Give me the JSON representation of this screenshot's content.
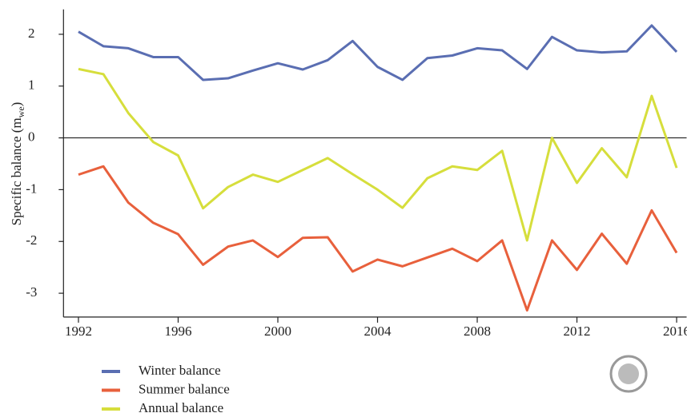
{
  "chart_data": {
    "type": "line",
    "ylabel": {
      "text": "Specific balance (m",
      "subscript": "we",
      "suffix": ")"
    },
    "x": [
      1992,
      1993,
      1994,
      1995,
      1996,
      1997,
      1998,
      1999,
      2000,
      2001,
      2002,
      2003,
      2004,
      2005,
      2006,
      2007,
      2008,
      2009,
      2010,
      2011,
      2012,
      2013,
      2014,
      2015,
      2016
    ],
    "series": [
      {
        "name": "Winter balance",
        "color": "#5a6eb2",
        "values": [
          2.05,
          1.77,
          1.73,
          1.56,
          1.56,
          1.12,
          1.15,
          1.3,
          1.44,
          1.32,
          1.5,
          1.87,
          1.37,
          1.12,
          1.54,
          1.59,
          1.73,
          1.69,
          1.33,
          1.95,
          1.69,
          1.65,
          1.67,
          2.17,
          1.66
        ]
      },
      {
        "name": "Summer balance",
        "color": "#e8603c",
        "values": [
          -0.71,
          -0.55,
          -1.25,
          -1.64,
          -1.86,
          -2.45,
          -2.1,
          -1.98,
          -2.3,
          -1.93,
          -1.92,
          -2.58,
          -2.35,
          -2.48,
          -2.31,
          -2.14,
          -2.38,
          -1.98,
          -3.33,
          -1.98,
          -2.55,
          -1.85,
          -2.43,
          -1.4,
          -2.22
        ]
      },
      {
        "name": "Annual balance",
        "color": "#d6de3c",
        "values": [
          1.33,
          1.23,
          0.48,
          -0.08,
          -0.34,
          -1.36,
          -0.95,
          -0.71,
          -0.85,
          -0.62,
          -0.39,
          -0.7,
          -1.0,
          -1.35,
          -0.78,
          -0.55,
          -0.62,
          -0.25,
          -1.98,
          0.0,
          -0.87,
          -0.2,
          -0.76,
          0.81,
          -0.58
        ]
      }
    ],
    "xlim": [
      1991.4,
      2016.4
    ],
    "xticks": [
      1992,
      1996,
      2000,
      2004,
      2008,
      2012,
      2016
    ],
    "ylim": [
      -3.46,
      2.48
    ],
    "yticks": [
      2,
      1,
      0,
      -1,
      -2,
      -3
    ],
    "zero_line": true
  }
}
